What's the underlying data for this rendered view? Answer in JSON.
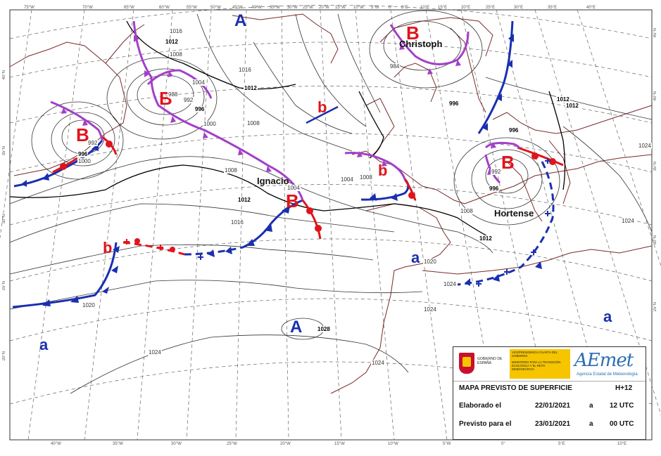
{
  "map": {
    "longitude_labels_top": [
      "75°W",
      "70°W",
      "65°W",
      "60°W",
      "55°W",
      "50°W",
      "45°W",
      "40°W",
      "35°W",
      "30°W",
      "25°W",
      "20°W",
      "15°W",
      "10°W",
      "5°W",
      "0°",
      "5°E",
      "10°E",
      "15°E",
      "20°E",
      "25°E",
      "30°E",
      "35°E",
      "40°E"
    ],
    "longitude_labels_bottom": [
      "40°W",
      "35°W",
      "30°W",
      "25°W",
      "20°W",
      "15°W",
      "10°W",
      "5°W",
      "0°",
      "5°E",
      "10°E"
    ],
    "latitude_labels_left": [
      "40°N",
      "35°N",
      "30°N",
      "25°N",
      "20°N"
    ],
    "latitude_labels_right": [
      "45°N",
      "40°N",
      "35°N",
      "30°N",
      "25°N"
    ],
    "pressure_centres": [
      {
        "type": "low",
        "symbol": "B",
        "name": "Christoph"
      },
      {
        "type": "low",
        "symbol": "B",
        "name": ""
      },
      {
        "type": "low",
        "symbol": "B",
        "name": ""
      },
      {
        "type": "low",
        "symbol": "B",
        "name": "Ignacio"
      },
      {
        "type": "low",
        "symbol": "B",
        "name": "Hortense"
      },
      {
        "type": "low_minor",
        "symbol": "b",
        "name": ""
      },
      {
        "type": "low_minor",
        "symbol": "b",
        "name": ""
      },
      {
        "type": "low_minor",
        "symbol": "b",
        "name": ""
      },
      {
        "type": "high",
        "symbol": "A",
        "name": ""
      },
      {
        "type": "high",
        "symbol": "A",
        "name": ""
      },
      {
        "type": "high_minor",
        "symbol": "a",
        "name": ""
      },
      {
        "type": "high_minor",
        "symbol": "a",
        "name": ""
      },
      {
        "type": "high_minor",
        "symbol": "a",
        "name": ""
      }
    ],
    "isobar_labels": [
      "1016",
      "1012",
      "1008",
      "1004",
      "1000",
      "996",
      "992",
      "1020",
      "1024",
      "1028",
      "984",
      "988"
    ],
    "colors": {
      "cold_front": "#1a2fb0",
      "warm_front": "#e0141b",
      "occluded_front": "#a340c8",
      "low": "#e0141b",
      "high": "#1a2fb0",
      "coast": "#7a2a2a"
    }
  },
  "info_panel": {
    "gobierno": "GOBIERNO DE ESPAÑA",
    "ministry_1": "VICEPRESIDENCIA CUARTA DEL GOBIERNO",
    "ministry_2": "MINISTERIO PARA LA TRANSICIÓN ECOLÓGICA Y EL RETO DEMOGRÁFICO",
    "logo": "AEmet",
    "logo_sub": "Agencia Estatal de Meteorología",
    "title": "MAPA PREVISTO DE SUPERFICIE",
    "lead": "H+12",
    "row1_label": "Elaborado el",
    "row1_date": "22/01/2021",
    "row1_a": "a",
    "row1_time": "12 UTC",
    "row2_label": "Previsto para el",
    "row2_date": "23/01/2021",
    "row2_a": "a",
    "row2_time": "00 UTC"
  }
}
